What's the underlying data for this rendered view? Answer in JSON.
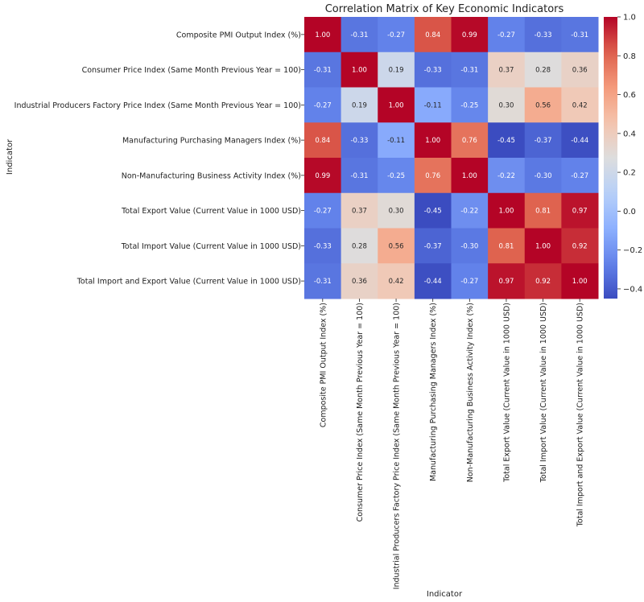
{
  "chart_data": {
    "type": "heatmap",
    "title": "Correlation Matrix of Key Economic Indicators",
    "xlabel": "Indicator",
    "ylabel": "Indicator",
    "labels": [
      "Composite PMI Output Index (%)",
      "Consumer Price Index (Same Month Previous Year = 100)",
      "Industrial Producers Factory Price Index (Same Month Previous Year = 100)",
      "Manufacturing Purchasing Managers Index (%)",
      "Non-Manufacturing Business Activity Index (%)",
      "Total Export Value (Current Value in 1000 USD)",
      "Total Import Value (Current Value in 1000 USD)",
      "Total Import and Export Value (Current Value in 1000 USD)"
    ],
    "values": [
      [
        1.0,
        -0.31,
        -0.27,
        0.84,
        0.99,
        -0.27,
        -0.33,
        -0.31
      ],
      [
        -0.31,
        1.0,
        0.19,
        -0.33,
        -0.31,
        0.37,
        0.28,
        0.36
      ],
      [
        -0.27,
        0.19,
        1.0,
        -0.11,
        -0.25,
        0.3,
        0.56,
        0.42
      ],
      [
        0.84,
        -0.33,
        -0.11,
        1.0,
        0.76,
        -0.45,
        -0.37,
        -0.44
      ],
      [
        0.99,
        -0.31,
        -0.25,
        0.76,
        1.0,
        -0.22,
        -0.3,
        -0.27
      ],
      [
        -0.27,
        0.37,
        0.3,
        -0.45,
        -0.22,
        1.0,
        0.81,
        0.97
      ],
      [
        -0.33,
        0.28,
        0.56,
        -0.37,
        -0.3,
        0.81,
        1.0,
        0.92
      ],
      [
        -0.31,
        0.36,
        0.42,
        -0.44,
        -0.27,
        0.97,
        0.92,
        1.0
      ]
    ],
    "cell_labels": [
      [
        "1.00",
        "-0.31",
        "-0.27",
        "0.84",
        "0.99",
        "-0.27",
        "-0.33",
        "-0.31"
      ],
      [
        "-0.31",
        "1.00",
        "0.19",
        "-0.33",
        "-0.31",
        "0.37",
        "0.28",
        "0.36"
      ],
      [
        "-0.27",
        "0.19",
        "1.00",
        "-0.11",
        "-0.25",
        "0.30",
        "0.56",
        "0.42"
      ],
      [
        "0.84",
        "-0.33",
        "-0.11",
        "1.00",
        "0.76",
        "-0.45",
        "-0.37",
        "-0.44"
      ],
      [
        "0.99",
        "-0.31",
        "-0.25",
        "0.76",
        "1.00",
        "-0.22",
        "-0.30",
        "-0.27"
      ],
      [
        "-0.27",
        "0.37",
        "0.30",
        "-0.45",
        "-0.22",
        "1.00",
        "0.81",
        "0.97"
      ],
      [
        "-0.33",
        "0.28",
        "0.56",
        "-0.37",
        "-0.30",
        "0.81",
        "1.00",
        "0.92"
      ],
      [
        "-0.31",
        "0.36",
        "0.42",
        "-0.44",
        "-0.27",
        "0.97",
        "0.92",
        "1.00"
      ]
    ],
    "colormap": "coolwarm",
    "colorbar": {
      "vmin": -0.45,
      "vmax": 1.0,
      "ticks": [
        1.0,
        0.8,
        0.6,
        0.4,
        0.2,
        0.0,
        -0.2,
        -0.4
      ],
      "tick_labels": [
        "1.0",
        "0.8",
        "0.6",
        "0.4",
        "0.2",
        "0.0",
        "−0.2",
        "−0.4"
      ]
    },
    "colors": {
      "low": "#3b4cc0",
      "mid": "#dddddd",
      "high": "#b40426"
    }
  }
}
